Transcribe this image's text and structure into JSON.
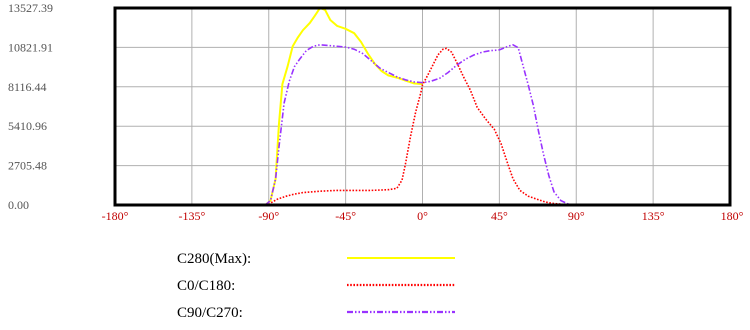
{
  "chart_data": {
    "type": "line",
    "title": "",
    "xlabel": "",
    "ylabel": "",
    "xlim": [
      -180,
      180
    ],
    "ylim": [
      0,
      13527.39
    ],
    "grid": true,
    "legend_position": "bottom-center",
    "y_ticks": [
      "13527.39",
      "10821.91",
      "8116.44",
      "5410.96",
      "2705.48",
      "0.00"
    ],
    "y_tick_values": [
      13527.39,
      10821.91,
      8116.44,
      5410.96,
      2705.48,
      0
    ],
    "x_ticks": [
      "-180°",
      "-135°",
      "-90°",
      "-45°",
      "0°",
      "45°",
      "90°",
      "135°",
      "180°"
    ],
    "x_tick_values": [
      -180,
      -135,
      -90,
      -45,
      0,
      45,
      90,
      135,
      180
    ],
    "series": [
      {
        "name": "C280(Max):",
        "color": "#ffff00",
        "style": "solid",
        "points": [
          [
            -92,
            0
          ],
          [
            -89,
            300
          ],
          [
            -86,
            1800
          ],
          [
            -84,
            5600
          ],
          [
            -82,
            8300
          ],
          [
            -79,
            9500
          ],
          [
            -76,
            10900
          ],
          [
            -73,
            11500
          ],
          [
            -70,
            12000
          ],
          [
            -66,
            12500
          ],
          [
            -63,
            13000
          ],
          [
            -60,
            13527
          ],
          [
            -57,
            13400
          ],
          [
            -54,
            12700
          ],
          [
            -50,
            12300
          ],
          [
            -45,
            12100
          ],
          [
            -40,
            11800
          ],
          [
            -36,
            11200
          ],
          [
            -32,
            10400
          ],
          [
            -28,
            9700
          ],
          [
            -24,
            9200
          ],
          [
            -20,
            8900
          ],
          [
            -15,
            8750
          ],
          [
            -10,
            8550
          ],
          [
            -5,
            8350
          ],
          [
            0,
            8300
          ]
        ]
      },
      {
        "name": "C0/C180:",
        "color": "#ff0000",
        "style": "dotted",
        "points": [
          [
            -92,
            0
          ],
          [
            -90,
            50
          ],
          [
            -88,
            200
          ],
          [
            -85,
            400
          ],
          [
            -80,
            600
          ],
          [
            -75,
            750
          ],
          [
            -70,
            850
          ],
          [
            -60,
            950
          ],
          [
            -50,
            1000
          ],
          [
            -40,
            1000
          ],
          [
            -30,
            1000
          ],
          [
            -20,
            1050
          ],
          [
            -15,
            1150
          ],
          [
            -12,
            1700
          ],
          [
            -10,
            2800
          ],
          [
            -7,
            4700
          ],
          [
            -4,
            6400
          ],
          [
            -1,
            7700
          ],
          [
            0,
            8250
          ],
          [
            3,
            8900
          ],
          [
            6,
            9600
          ],
          [
            9,
            10300
          ],
          [
            12,
            10700
          ],
          [
            14,
            10750
          ],
          [
            17,
            10500
          ],
          [
            20,
            9800
          ],
          [
            24,
            8800
          ],
          [
            28,
            7900
          ],
          [
            32,
            6700
          ],
          [
            37,
            5900
          ],
          [
            42,
            5200
          ],
          [
            46,
            4200
          ],
          [
            50,
            2800
          ],
          [
            53,
            1800
          ],
          [
            57,
            1000
          ],
          [
            62,
            600
          ],
          [
            67,
            400
          ],
          [
            72,
            200
          ],
          [
            77,
            100
          ],
          [
            82,
            50
          ],
          [
            86,
            10
          ],
          [
            88,
            0
          ]
        ]
      },
      {
        "name": "C90/C270:",
        "color": "#9933ff",
        "style": "dashdot",
        "points": [
          [
            -92,
            0
          ],
          [
            -89,
            300
          ],
          [
            -86,
            1800
          ],
          [
            -84,
            4000
          ],
          [
            -81,
            7000
          ],
          [
            -78,
            8500
          ],
          [
            -75,
            9500
          ],
          [
            -72,
            10000
          ],
          [
            -68,
            10600
          ],
          [
            -64,
            10900
          ],
          [
            -60,
            11000
          ],
          [
            -55,
            10950
          ],
          [
            -50,
            10900
          ],
          [
            -45,
            10850
          ],
          [
            -40,
            10700
          ],
          [
            -35,
            10400
          ],
          [
            -30,
            9900
          ],
          [
            -25,
            9400
          ],
          [
            -20,
            9100
          ],
          [
            -15,
            8800
          ],
          [
            -10,
            8600
          ],
          [
            -5,
            8450
          ],
          [
            0,
            8400
          ],
          [
            5,
            8500
          ],
          [
            10,
            8700
          ],
          [
            15,
            9100
          ],
          [
            20,
            9600
          ],
          [
            25,
            10000
          ],
          [
            30,
            10300
          ],
          [
            35,
            10500
          ],
          [
            40,
            10600
          ],
          [
            45,
            10650
          ],
          [
            50,
            10900
          ],
          [
            53,
            11000
          ],
          [
            56,
            10800
          ],
          [
            59,
            9500
          ],
          [
            62,
            8200
          ],
          [
            65,
            6800
          ],
          [
            68,
            5000
          ],
          [
            71,
            3400
          ],
          [
            74,
            2000
          ],
          [
            77,
            900
          ],
          [
            81,
            300
          ],
          [
            85,
            80
          ],
          [
            88,
            0
          ]
        ]
      }
    ]
  }
}
